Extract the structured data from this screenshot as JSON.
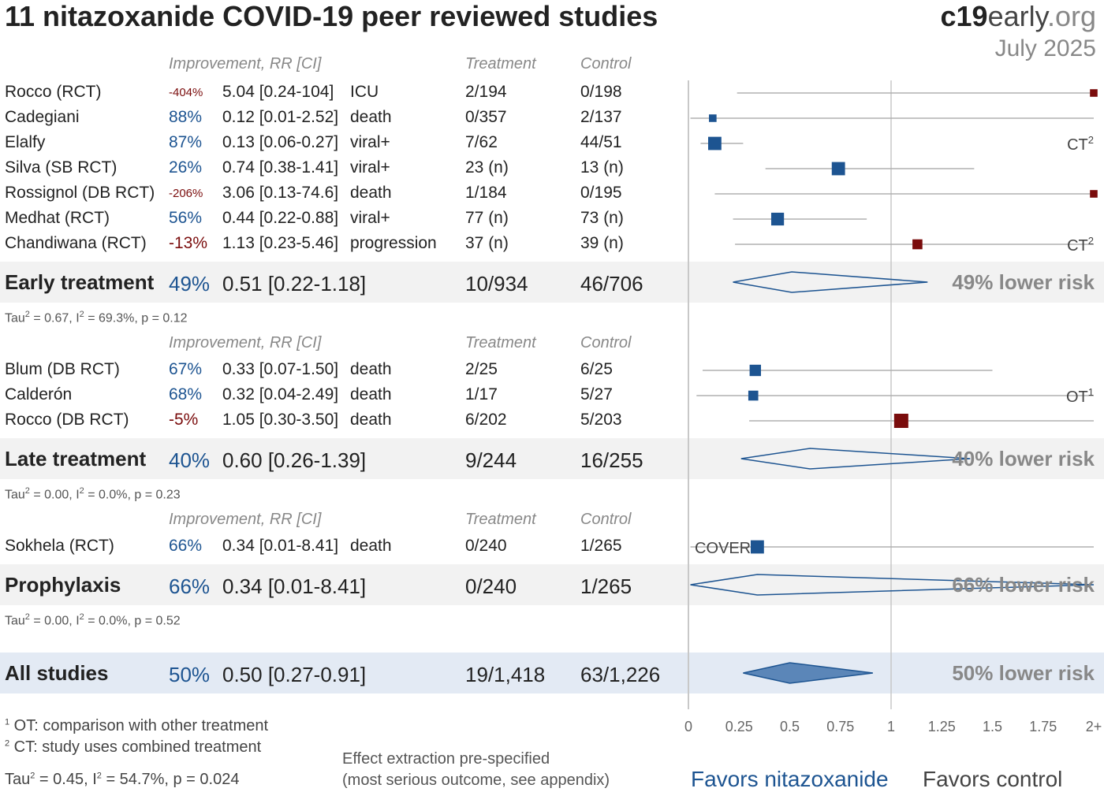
{
  "header": {
    "title": "11 nitazoxanide COVID-19 peer reviewed studies",
    "brand_bold": "c19",
    "brand_rest": "early",
    "brand_tld": ".org",
    "date": "July 2025"
  },
  "column_headers": {
    "improvement": "Improvement, RR [CI]",
    "treatment": "Treatment",
    "control": "Control"
  },
  "groups": [
    {
      "name": "Early treatment",
      "improvement": "49%",
      "rr": "0.51 [0.22-1.18]",
      "treatment": "10/934",
      "control": "46/706",
      "risk_text": "49% lower risk",
      "stats_tau": "Tau",
      "stats_rest": " = 0.67, I",
      "stats_i2": " = 69.3%, p = 0.12",
      "summary": {
        "rr": 0.51,
        "lo": 0.22,
        "hi": 1.18
      },
      "studies": [
        {
          "name": "Rocco (RCT)",
          "improvement": "-404%",
          "rr_text": "5.04 [0.24-104]",
          "outcome": "ICU",
          "treatment": "2/194",
          "control": "0/198",
          "rr": 5.04,
          "lo": 0.24,
          "hi": 104,
          "weight": 0.3,
          "tag": "",
          "tag_sup": "",
          "negative": true,
          "small": true
        },
        {
          "name": "Cadegiani",
          "improvement": "88%",
          "rr_text": "0.12 [0.01-2.52]",
          "outcome": "death",
          "treatment": "0/357",
          "control": "2/137",
          "rr": 0.12,
          "lo": 0.01,
          "hi": 2.52,
          "weight": 0.3,
          "tag": "",
          "tag_sup": "",
          "negative": false,
          "small": false
        },
        {
          "name": "Elalfy",
          "improvement": "87%",
          "rr_text": "0.13 [0.06-0.27]",
          "outcome": "viral+",
          "treatment": "7/62",
          "control": "44/51",
          "rr": 0.13,
          "lo": 0.06,
          "hi": 0.27,
          "weight": 0.9,
          "tag": "CT",
          "tag_sup": "2",
          "negative": false,
          "small": false
        },
        {
          "name": "Silva (SB RCT)",
          "improvement": "26%",
          "rr_text": "0.74 [0.38-1.41]",
          "outcome": "viral+",
          "treatment": "23 (n)",
          "control": "13 (n)",
          "rr": 0.74,
          "lo": 0.38,
          "hi": 1.41,
          "weight": 0.9,
          "tag": "",
          "tag_sup": "",
          "negative": false,
          "small": false
        },
        {
          "name": "Rossignol (DB RCT)",
          "improvement": "-206%",
          "rr_text": "3.06 [0.13-74.6]",
          "outcome": "death",
          "treatment": "1/184",
          "control": "0/195",
          "rr": 3.06,
          "lo": 0.13,
          "hi": 74.6,
          "weight": 0.3,
          "tag": "",
          "tag_sup": "",
          "negative": true,
          "small": true
        },
        {
          "name": "Medhat (RCT)",
          "improvement": "56%",
          "rr_text": "0.44 [0.22-0.88]",
          "outcome": "viral+",
          "treatment": "77 (n)",
          "control": "73 (n)",
          "rr": 0.44,
          "lo": 0.22,
          "hi": 0.88,
          "weight": 0.85,
          "tag": "",
          "tag_sup": "",
          "negative": false,
          "small": false
        },
        {
          "name": "Chandiwana (RCT)",
          "improvement": "-13%",
          "rr_text": "1.13 [0.23-5.46]",
          "outcome": "progression",
          "treatment": "37 (n)",
          "control": "39 (n)",
          "rr": 1.13,
          "lo": 0.23,
          "hi": 5.46,
          "weight": 0.55,
          "tag": "CT",
          "tag_sup": "2",
          "negative": true,
          "small": false
        }
      ]
    },
    {
      "name": "Late treatment",
      "improvement": "40%",
      "rr": "0.60 [0.26-1.39]",
      "treatment": "9/244",
      "control": "16/255",
      "risk_text": "40% lower risk",
      "stats_tau": "Tau",
      "stats_rest": " = 0.00, I",
      "stats_i2": " = 0.0%, p = 0.23",
      "summary": {
        "rr": 0.6,
        "lo": 0.26,
        "hi": 1.39
      },
      "studies": [
        {
          "name": "Blum (DB RCT)",
          "improvement": "67%",
          "rr_text": "0.33 [0.07-1.50]",
          "outcome": "death",
          "treatment": "2/25",
          "control": "6/25",
          "rr": 0.33,
          "lo": 0.07,
          "hi": 1.5,
          "weight": 0.7,
          "tag": "",
          "tag_sup": "",
          "negative": false,
          "small": false
        },
        {
          "name": "Calderón",
          "improvement": "68%",
          "rr_text": "0.32 [0.04-2.49]",
          "outcome": "death",
          "treatment": "1/17",
          "control": "5/27",
          "rr": 0.32,
          "lo": 0.04,
          "hi": 2.49,
          "weight": 0.55,
          "tag": "OT",
          "tag_sup": "1",
          "negative": false,
          "small": false
        },
        {
          "name": "Rocco (DB RCT)",
          "improvement": "-5%",
          "rr_text": "1.05 [0.30-3.50]",
          "outcome": "death",
          "treatment": "6/202",
          "control": "5/203",
          "rr": 1.05,
          "lo": 0.3,
          "hi": 3.5,
          "weight": 1.0,
          "tag": "",
          "tag_sup": "",
          "negative": true,
          "small": false
        }
      ]
    },
    {
      "name": "Prophylaxis",
      "improvement": "66%",
      "rr": "0.34 [0.01-8.41]",
      "treatment": "0/240",
      "control": "1/265",
      "risk_text": "66% lower risk",
      "stats_tau": "Tau",
      "stats_rest": " = 0.00, I",
      "stats_i2": " = 0.0%, p = 0.52",
      "summary": {
        "rr": 0.34,
        "lo": 0.01,
        "hi": 8.41
      },
      "studies": [
        {
          "name": "Sokhela (RCT)",
          "improvement": "66%",
          "rr_text": "0.34 [0.01-8.41]",
          "outcome": "death",
          "treatment": "0/240",
          "control": "1/265",
          "rr": 0.34,
          "lo": 0.01,
          "hi": 8.41,
          "weight": 0.9,
          "tag": "COVER",
          "tag_sup": "",
          "negative": false,
          "small": false
        }
      ]
    }
  ],
  "all_studies": {
    "name": "All studies",
    "improvement": "50%",
    "rr": "0.50 [0.27-0.91]",
    "treatment": "19/1,418",
    "control": "63/1,226",
    "risk_text": "50% lower risk",
    "summary": {
      "rr": 0.5,
      "lo": 0.27,
      "hi": 0.91
    }
  },
  "footnotes": {
    "ot_num": "1",
    "ot_text": " OT: comparison with other treatment",
    "ct_num": "2",
    "ct_text": " CT: study uses combined treatment",
    "overall_tau": "Tau",
    "overall_rest": " = 0.45, I",
    "overall_i2": " = 54.7%, p = 0.024",
    "note_line1": "Effect extraction pre-specified",
    "note_line2": "(most serious outcome, see appendix)"
  },
  "axis": {
    "ticks": [
      "0",
      "0.25",
      "0.5",
      "0.75",
      "1",
      "1.25",
      "1.5",
      "1.75",
      "2+"
    ],
    "favors_treatment": "Favors nitazoxanide",
    "favors_control": "Favors control"
  },
  "chart_data": {
    "type": "forest",
    "xlim": [
      0,
      2
    ],
    "reference_line": 1,
    "colors": {
      "favorable": "#1d5491",
      "unfavorable": "#7a0c0c",
      "ci_line": "#b0b0b0",
      "diamond_fill": "#5b86b8"
    }
  }
}
